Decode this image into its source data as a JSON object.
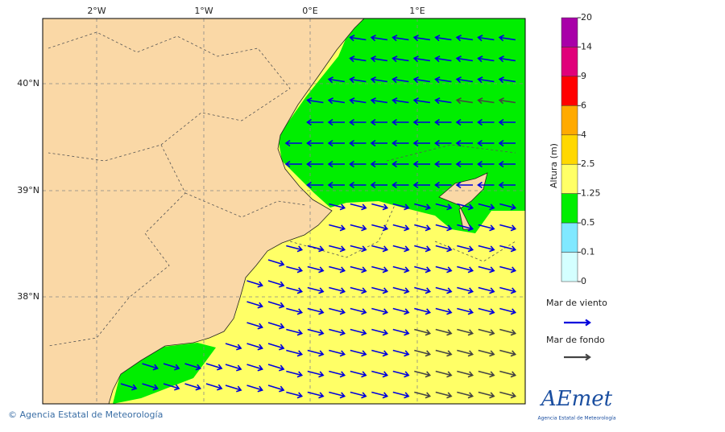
{
  "map": {
    "x_labels": [
      "2°W",
      "1°W",
      "0°E",
      "1°E"
    ],
    "y_labels": [
      "40°N",
      "39°N",
      "38°N"
    ]
  },
  "colorbar": {
    "title": "Altura (m)",
    "levels": [
      20,
      14,
      9,
      6,
      4,
      2.5,
      1.25,
      0.5,
      0.1,
      0
    ],
    "colors": [
      "#a800a8",
      "#e0007a",
      "#ff0000",
      "#ffaa00",
      "#ffd800",
      "#ffff66",
      "#00ee00",
      "#80e8ff",
      "#d4ffff"
    ]
  },
  "legend": {
    "items": [
      {
        "label": "Mar de viento",
        "color": "#0000dd"
      },
      {
        "label": "Mar de fondo",
        "color": "#444444"
      }
    ]
  },
  "footer": {
    "credit": "© Agencia Estatal de Meteorología"
  },
  "logo": {
    "name": "AEmet",
    "subtitle": "Agencia Estatal de Meteorología"
  }
}
